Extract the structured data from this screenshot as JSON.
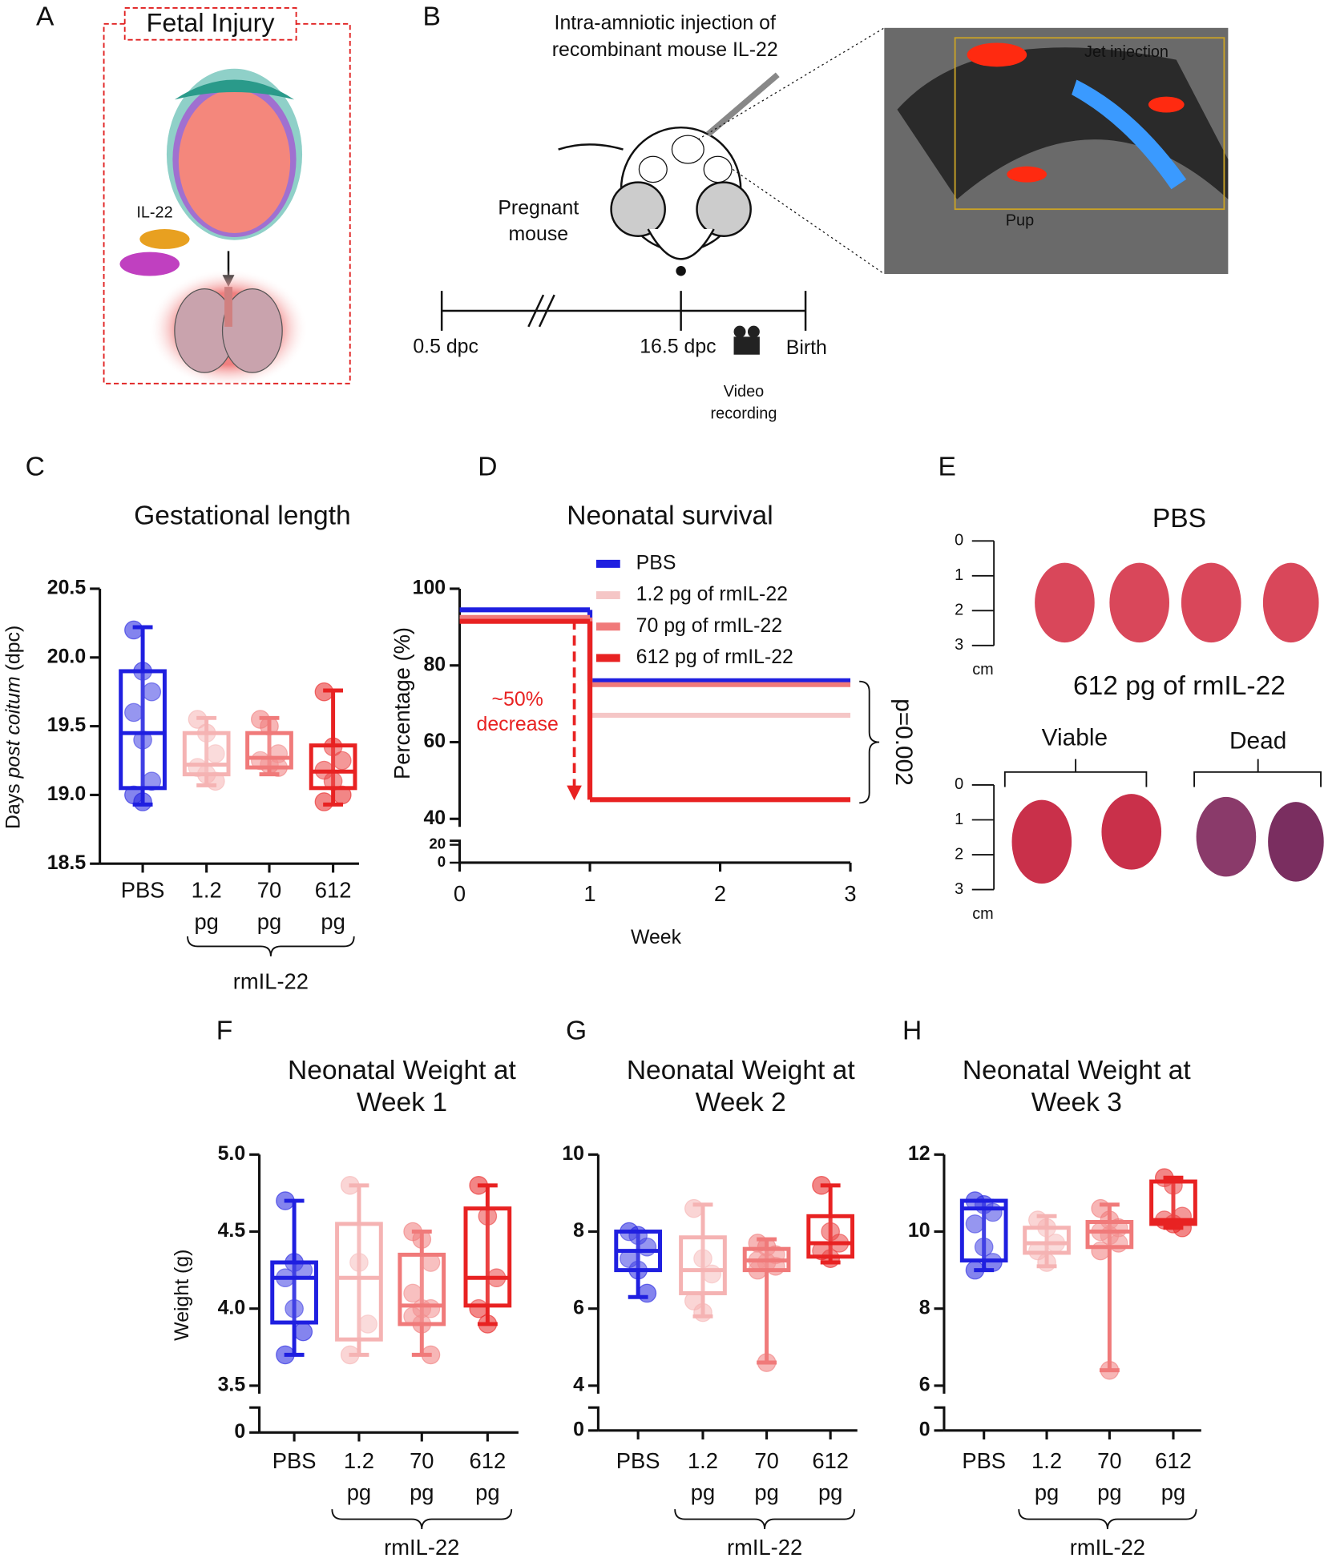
{
  "panel_a": {
    "letter": "A",
    "title": "Fetal Injury",
    "label": "IL-22"
  },
  "panel_b": {
    "letter": "B",
    "injection": [
      "Intra-amniotic injection of",
      "recombinant mouse IL-22"
    ],
    "animal": [
      "Pregnant",
      "mouse"
    ],
    "image_labels": [
      "Jet injection",
      "Pup"
    ],
    "timeline": [
      "0.5 dpc",
      "16.5 dpc",
      "Birth"
    ],
    "recording": [
      "Video",
      "recording"
    ]
  },
  "panel_e": {
    "letter": "E",
    "control": "PBS",
    "treated": "612 pg of rmIL-22",
    "groups": [
      "Viable",
      "Dead"
    ],
    "scale_ticks": [
      0,
      1,
      2,
      3
    ],
    "scale_unit": "cm"
  },
  "chart_data": [
    {
      "type": "box",
      "panel": "C",
      "title": [
        "Gestational length"
      ],
      "ylabel": [
        "Days ",
        "post coitum",
        " (dpc)"
      ],
      "categories": [
        [
          "PBS"
        ],
        [
          "1.2",
          "pg"
        ],
        [
          "70",
          "pg"
        ],
        [
          "612",
          "pg"
        ]
      ],
      "group_label": "rmIL-22",
      "ylim": [
        18.5,
        20.5
      ],
      "yticks": [
        18.5,
        {
          "value": 19,
          "label": "19.0"
        },
        19.5,
        {
          "value": 20,
          "label": "20.0"
        },
        20.5
      ],
      "series": [
        {
          "color": "#1f1fe0",
          "box": {
            "min": 18.93,
            "q1": 19.05,
            "median": 19.45,
            "q3": 19.9,
            "max": 20.22
          },
          "points": [
            20.2,
            19.9,
            19.75,
            19.6,
            19.4,
            19.1,
            19.0,
            18.95
          ]
        },
        {
          "color": "#f5b3b3",
          "box": {
            "min": 19.07,
            "q1": 19.15,
            "median": 19.22,
            "q3": 19.45,
            "max": 19.56
          },
          "points": [
            19.55,
            19.45,
            19.3,
            19.2,
            19.15,
            19.1
          ]
        },
        {
          "color": "#f07a7a",
          "box": {
            "min": 19.15,
            "q1": 19.2,
            "median": 19.27,
            "q3": 19.45,
            "max": 19.56
          },
          "points": [
            19.55,
            19.5,
            19.3,
            19.25,
            19.22,
            19.2
          ]
        },
        {
          "color": "#e82222",
          "box": {
            "min": 18.93,
            "q1": 19.05,
            "median": 19.17,
            "q3": 19.36,
            "max": 19.76
          },
          "points": [
            19.75,
            19.35,
            19.25,
            19.18,
            19.1,
            19.0,
            18.95
          ]
        }
      ]
    },
    {
      "type": "step",
      "panel": "D",
      "title": [
        "Neonatal survival"
      ],
      "ylabel": "Percentage (%)",
      "xlabel": "Week",
      "xlim": [
        0,
        3
      ],
      "xticks": [
        0,
        1,
        2,
        3
      ],
      "ylim": [
        40,
        100
      ],
      "yticks": [
        40,
        60,
        80,
        100
      ],
      "break_ticks": [
        0,
        20
      ],
      "annotation": [
        "~50%",
        "decrease"
      ],
      "p_value": "p=0.002",
      "x": [
        0,
        1,
        3
      ],
      "series": [
        {
          "name": "PBS",
          "color": "#1f1fe0",
          "values": [
            94.5,
            76,
            76
          ]
        },
        {
          "name": "1.2 pg of rmIL-22",
          "color": "#f5c6c6",
          "values": [
            92,
            67,
            67
          ]
        },
        {
          "name": "70 pg of rmIL-22",
          "color": "#f07a7a",
          "values": [
            92.5,
            75,
            75
          ]
        },
        {
          "name": "612 pg of rmIL-22",
          "color": "#e82222",
          "values": [
            91.5,
            45,
            45
          ]
        }
      ]
    },
    {
      "type": "box",
      "panel": "F",
      "title": [
        "Neonatal Weight at",
        "Week 1"
      ],
      "ylabel": [
        "Weight (g)"
      ],
      "categories": [
        [
          "PBS"
        ],
        [
          "1.2",
          "pg"
        ],
        [
          "70",
          "pg"
        ],
        [
          "612",
          "pg"
        ]
      ],
      "group_label": "rmIL-22",
      "ylim": [
        3.5,
        5
      ],
      "yticks": [
        3.5,
        {
          "value": 4,
          "label": "4.0"
        },
        4.5,
        {
          "value": 5,
          "label": "5.0"
        }
      ],
      "break_ticks": [
        0
      ],
      "series": [
        {
          "color": "#1f1fe0",
          "box": {
            "min": 3.7,
            "q1": 3.91,
            "median": 4.2,
            "q3": 4.3,
            "max": 4.7
          },
          "points": [
            4.7,
            4.3,
            4.25,
            4.2,
            4.0,
            3.85,
            3.7
          ]
        },
        {
          "color": "#f5b3b3",
          "box": {
            "min": 3.7,
            "q1": 3.8,
            "median": 4.2,
            "q3": 4.55,
            "max": 4.8
          },
          "points": [
            4.8,
            4.3,
            3.9,
            3.7
          ]
        },
        {
          "color": "#f07a7a",
          "box": {
            "min": 3.7,
            "q1": 3.9,
            "median": 4.02,
            "q3": 4.35,
            "max": 4.5
          },
          "points": [
            4.5,
            4.45,
            4.3,
            4.1,
            4.0,
            4.0,
            3.95,
            3.9,
            3.7
          ]
        },
        {
          "color": "#e82222",
          "box": {
            "min": 3.9,
            "q1": 4.02,
            "median": 4.2,
            "q3": 4.65,
            "max": 4.8
          },
          "points": [
            4.8,
            4.6,
            4.2,
            4.0,
            3.9
          ]
        }
      ]
    },
    {
      "type": "box",
      "panel": "G",
      "title": [
        "Neonatal Weight at",
        "Week 2"
      ],
      "categories": [
        [
          "PBS"
        ],
        [
          "1.2",
          "pg"
        ],
        [
          "70",
          "pg"
        ],
        [
          "612",
          "pg"
        ]
      ],
      "group_label": "rmIL-22",
      "ylim": [
        4,
        10
      ],
      "yticks": [
        4,
        6,
        8,
        10
      ],
      "break_ticks": [
        0
      ],
      "series": [
        {
          "color": "#1f1fe0",
          "box": {
            "min": 6.3,
            "q1": 7.0,
            "median": 7.5,
            "q3": 8.0,
            "max": 8.0
          },
          "points": [
            8.0,
            7.9,
            7.6,
            7.3,
            7.0,
            6.4
          ]
        },
        {
          "color": "#f5b3b3",
          "box": {
            "min": 5.8,
            "q1": 6.4,
            "median": 7.0,
            "q3": 7.85,
            "max": 8.7
          },
          "points": [
            8.6,
            7.3,
            6.9,
            6.2,
            5.9
          ]
        },
        {
          "color": "#f07a7a",
          "box": {
            "min": 4.6,
            "q1": 7.0,
            "median": 7.25,
            "q3": 7.55,
            "max": 7.8
          },
          "points": [
            7.7,
            7.6,
            7.4,
            7.25,
            7.2,
            7.1,
            7.0,
            4.6
          ]
        },
        {
          "color": "#e82222",
          "box": {
            "min": 7.2,
            "q1": 7.35,
            "median": 7.7,
            "q3": 8.4,
            "max": 9.2
          },
          "points": [
            9.2,
            8.0,
            7.7,
            7.5,
            7.3
          ]
        }
      ]
    },
    {
      "type": "box",
      "panel": "H",
      "title": [
        "Neonatal Weight at",
        "Week 3"
      ],
      "categories": [
        [
          "PBS"
        ],
        [
          "1.2",
          "pg"
        ],
        [
          "70",
          "pg"
        ],
        [
          "612",
          "pg"
        ]
      ],
      "group_label": "rmIL-22",
      "ylim": [
        6,
        12
      ],
      "yticks": [
        6,
        8,
        10,
        12
      ],
      "break_ticks": [
        0
      ],
      "series": [
        {
          "color": "#1f1fe0",
          "box": {
            "min": 9.0,
            "q1": 9.25,
            "median": 10.6,
            "q3": 10.8,
            "max": 10.8
          },
          "points": [
            10.8,
            10.7,
            10.5,
            10.2,
            9.6,
            9.2,
            9.0
          ]
        },
        {
          "color": "#f5b3b3",
          "box": {
            "min": 9.1,
            "q1": 9.45,
            "median": 9.7,
            "q3": 10.1,
            "max": 10.4
          },
          "points": [
            10.3,
            10.1,
            9.7,
            9.5,
            9.2
          ]
        },
        {
          "color": "#f07a7a",
          "box": {
            "min": 6.4,
            "q1": 9.6,
            "median": 10.0,
            "q3": 10.25,
            "max": 10.7
          },
          "points": [
            10.6,
            10.3,
            10.1,
            10.0,
            9.9,
            9.7,
            9.5,
            6.4
          ]
        },
        {
          "color": "#e82222",
          "box": {
            "min": 10.1,
            "q1": 10.2,
            "median": 10.3,
            "q3": 11.3,
            "max": 11.4
          },
          "points": [
            11.4,
            11.2,
            10.4,
            10.3,
            10.2,
            10.1
          ]
        }
      ]
    }
  ]
}
